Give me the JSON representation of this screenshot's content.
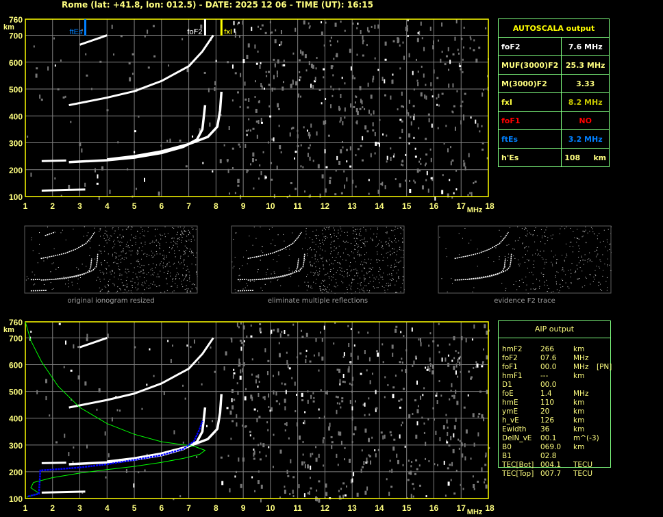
{
  "header": {
    "title": "Rome (lat: +41.8, lon: 012.5) - DATE: 2025 12 06 - TIME (UT): 16:15"
  },
  "autoscala": {
    "title": "AUTOSCALA output",
    "rows": [
      {
        "label": "foF2",
        "value": "7.6 MHz",
        "color": "#ffffff"
      },
      {
        "label": "MUF(3000)F2",
        "value": "25.3 MHz",
        "color": "#ffff80"
      },
      {
        "label": "M(3000)F2",
        "value": "3.33",
        "color": "#ffff80"
      },
      {
        "label": "fxI",
        "value": "8.2 MHz",
        "color": "#ffff40",
        "valcolor": "#c8c800"
      },
      {
        "label": "foF1",
        "value": "NO",
        "color": "#ff0000"
      },
      {
        "label": "ftEs",
        "value": "3.2 MHz",
        "color": "#0080ff"
      },
      {
        "label": "h'Es",
        "value": "108     km",
        "color": "#ffff80"
      }
    ]
  },
  "aip": {
    "title": "AIP output",
    "rows": [
      [
        "hmF2",
        "266",
        "km",
        ""
      ],
      [
        "foF2",
        "07.6",
        "MHz",
        ""
      ],
      [
        "foF1",
        "00.0",
        "MHz",
        "[PN]"
      ],
      [
        "hmF1",
        "---",
        "km",
        ""
      ],
      [
        "D1",
        "00.0",
        "",
        ""
      ],
      [
        "foE",
        "1.4",
        "MHz",
        ""
      ],
      [
        "hmE",
        "110",
        "km",
        ""
      ],
      [
        "ymE",
        "20",
        "km",
        ""
      ],
      [
        "h_vE",
        "126",
        "km",
        ""
      ],
      [
        "Ewidth",
        "36",
        "km",
        ""
      ],
      [
        "DelN_vE",
        "00.1",
        "m^(-3)",
        ""
      ],
      [
        "B0",
        "069.0",
        "km",
        ""
      ],
      [
        "B1",
        "02.8",
        "",
        ""
      ],
      [
        "TEC[Bot]",
        "004.1",
        "TECU",
        ""
      ],
      [
        "TEC[Top]",
        "007.7",
        "TECU",
        ""
      ]
    ]
  },
  "thumbnails": {
    "captions": [
      "original ionogram resized",
      "eliminate multiple reflections",
      "evidence F2 trace"
    ]
  },
  "colors": {
    "axis": "#ffff00",
    "grid": "#808080",
    "frame_box": "#80ff80",
    "ftEs": "#0080ff",
    "fxI": "#ffff00",
    "foF2": "#ffffff",
    "profile": "#00ff00",
    "trace_fit": "#0000ff"
  },
  "chart_data": [
    {
      "type": "scatter",
      "name": "top-ionogram",
      "xlabel": "MHz",
      "ylabel": "km",
      "xlim": [
        1,
        18
      ],
      "ylim": [
        100,
        760
      ],
      "xticks": [
        "1",
        "2",
        "3",
        "4",
        "5",
        "6",
        "7",
        "8",
        "9",
        "10",
        "11",
        "12",
        "13",
        "14",
        "15",
        "16",
        "17",
        "18"
      ],
      "yticks": [
        "100",
        "200",
        "300",
        "400",
        "500",
        "600",
        "700",
        "760"
      ],
      "grid": true,
      "markers": [
        {
          "label": "ftEs",
          "x": 3.2,
          "color": "#0080ff"
        },
        {
          "label": "foF2",
          "x": 7.6,
          "color": "#ffffff"
        },
        {
          "label": "fxI",
          "x": 8.2,
          "color": "#ffff00"
        }
      ],
      "traces": {
        "F2_o": [
          [
            2.6,
            228
          ],
          [
            4,
            235
          ],
          [
            5,
            245
          ],
          [
            6,
            262
          ],
          [
            6.8,
            285
          ],
          [
            7.3,
            312
          ],
          [
            7.5,
            350
          ],
          [
            7.6,
            440
          ]
        ],
        "F2_x": [
          [
            4,
            238
          ],
          [
            5,
            250
          ],
          [
            6,
            268
          ],
          [
            7,
            295
          ],
          [
            7.7,
            322
          ],
          [
            8.05,
            360
          ],
          [
            8.15,
            420
          ],
          [
            8.2,
            490
          ]
        ],
        "F2_2hop": [
          [
            2.6,
            440
          ],
          [
            4,
            468
          ],
          [
            5,
            492
          ],
          [
            6,
            530
          ],
          [
            7,
            585
          ],
          [
            7.5,
            640
          ],
          [
            7.9,
            700
          ]
        ],
        "F2_3hop": [
          [
            3,
            665
          ],
          [
            4,
            700
          ]
        ],
        "Es": [
          [
            1.6,
            122
          ],
          [
            3.2,
            126
          ]
        ],
        "E": [
          [
            1.6,
            232
          ],
          [
            2.5,
            234
          ]
        ]
      }
    },
    {
      "type": "scatter",
      "name": "bottom-ionogram",
      "xlabel": "MHz",
      "ylabel": "km",
      "xlim": [
        1,
        18
      ],
      "ylim": [
        100,
        760
      ],
      "xticks": [
        "1",
        "2",
        "3",
        "4",
        "5",
        "6",
        "7",
        "8",
        "9",
        "10",
        "11",
        "12",
        "13",
        "14",
        "15",
        "16",
        "17",
        "18"
      ],
      "yticks": [
        "100",
        "200",
        "300",
        "400",
        "500",
        "600",
        "700",
        "760"
      ],
      "grid": true,
      "profile": [
        [
          1.05,
          105
        ],
        [
          1.5,
          120
        ],
        [
          1.2,
          140
        ],
        [
          1.3,
          160
        ],
        [
          2,
          178
        ],
        [
          3,
          195
        ],
        [
          4,
          208
        ],
        [
          5,
          220
        ],
        [
          6,
          235
        ],
        [
          6.8,
          250
        ],
        [
          7.4,
          265
        ],
        [
          7.6,
          280
        ],
        [
          7.2,
          295
        ],
        [
          6,
          312
        ],
        [
          5,
          340
        ],
        [
          4,
          380
        ],
        [
          3,
          440
        ],
        [
          2.2,
          520
        ],
        [
          1.6,
          610
        ],
        [
          1.2,
          690
        ],
        [
          1,
          760
        ]
      ],
      "fit_trace": [
        [
          1.1,
          108
        ],
        [
          1.5,
          118
        ],
        [
          1.55,
          205
        ],
        [
          2,
          208
        ],
        [
          3,
          216
        ],
        [
          4,
          228
        ],
        [
          5,
          244
        ],
        [
          6,
          262
        ],
        [
          6.8,
          285
        ],
        [
          7.2,
          315
        ],
        [
          7.4,
          360
        ],
        [
          7.5,
          390
        ]
      ]
    }
  ]
}
